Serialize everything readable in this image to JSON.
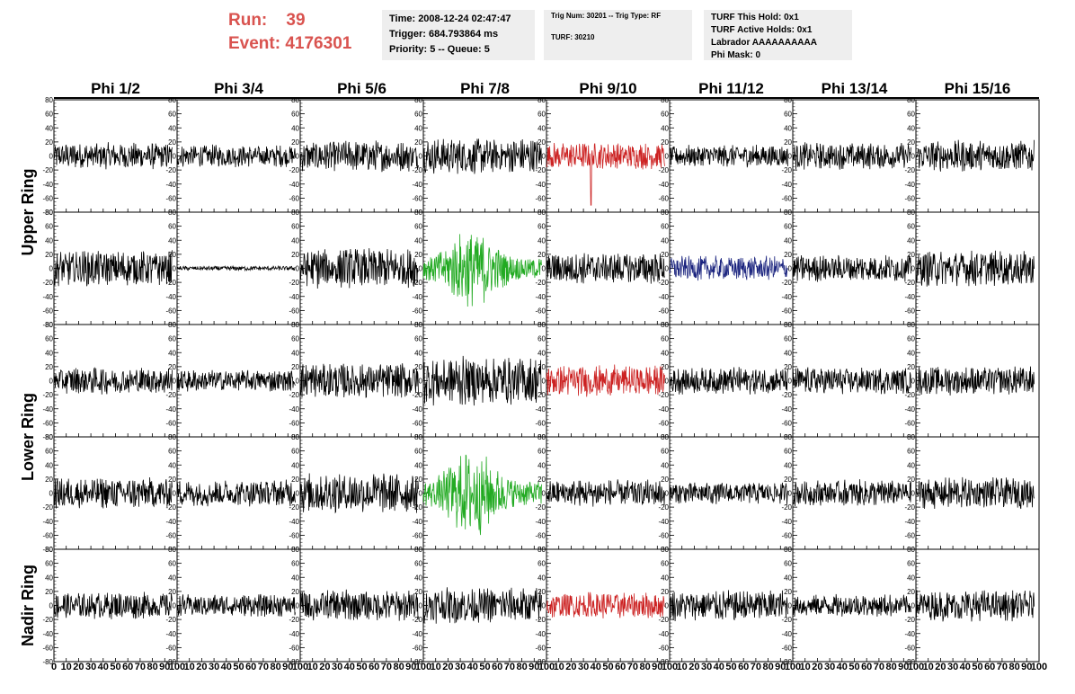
{
  "header": {
    "run_label": "Run:",
    "run_value": "39",
    "event_label": "Event:",
    "event_value": "4176301",
    "time": "Time: 2008-12-24 02:47:47",
    "trigger": "Trigger: 684.793864 ms",
    "priority": "Priority: 5 -- Queue: 5",
    "trig_num": "Trig Num: 30201 -- Trig Type: RF",
    "turf": "TURF: 30210",
    "turf_this_hold": "TURF This Hold: 0x1",
    "turf_active_holds": "TURF Active Holds: 0x1",
    "labrador": "Labrador AAAAAAAAAA",
    "phi_mask": "Phi Mask: 0"
  },
  "chart_data": {
    "type": "line",
    "columns": [
      "Phi 1/2",
      "Phi 3/4",
      "Phi 5/6",
      "Phi 7/8",
      "Phi 9/10",
      "Phi 11/12",
      "Phi 13/14",
      "Phi 15/16"
    ],
    "row_groups": [
      {
        "label": "Upper Ring",
        "rows": [
          0,
          1
        ]
      },
      {
        "label": "Lower Ring",
        "rows": [
          2,
          3
        ]
      },
      {
        "label": "Nadir Ring",
        "rows": [
          4
        ]
      }
    ],
    "ylim": [
      -80,
      80
    ],
    "y_ticks": [
      -80,
      -60,
      -40,
      -20,
      0,
      20,
      40,
      60,
      80
    ],
    "xlim": [
      0,
      100
    ],
    "x_ticks": [
      0,
      10,
      20,
      30,
      40,
      50,
      60,
      70,
      80,
      90,
      100
    ],
    "trace_xmax": 96,
    "colors": {
      "default": "#000000",
      "red": "#cc2222",
      "green": "#22aa22",
      "blue": "#1a237e"
    },
    "panels": [
      [
        {
          "color": "default",
          "amp": 12
        },
        {
          "color": "default",
          "amp": 10
        },
        {
          "color": "default",
          "amp": 14
        },
        {
          "color": "default",
          "amp": 16
        },
        {
          "color": "red",
          "amp": 12,
          "spike": {
            "x": 36,
            "y": -70
          }
        },
        {
          "color": "default",
          "amp": 10
        },
        {
          "color": "default",
          "amp": 12
        },
        {
          "color": "default",
          "amp": 14
        }
      ],
      [
        {
          "color": "default",
          "amp": 16
        },
        {
          "color": "default",
          "amp": 2
        },
        {
          "color": "default",
          "amp": 18
        },
        {
          "color": "green",
          "amp": 22,
          "envelope": true
        },
        {
          "color": "default",
          "amp": 14
        },
        {
          "color": "blue",
          "amp": 11
        },
        {
          "color": "default",
          "amp": 12
        },
        {
          "color": "default",
          "amp": 16
        }
      ],
      [
        {
          "color": "default",
          "amp": 12
        },
        {
          "color": "default",
          "amp": 10
        },
        {
          "color": "default",
          "amp": 16
        },
        {
          "color": "default",
          "amp": 22
        },
        {
          "color": "red",
          "amp": 14
        },
        {
          "color": "default",
          "amp": 12
        },
        {
          "color": "default",
          "amp": 12
        },
        {
          "color": "default",
          "amp": 13
        }
      ],
      [
        {
          "color": "default",
          "amp": 14
        },
        {
          "color": "default",
          "amp": 12
        },
        {
          "color": "default",
          "amp": 18
        },
        {
          "color": "green",
          "amp": 24,
          "envelope": true
        },
        {
          "color": "default",
          "amp": 12
        },
        {
          "color": "default",
          "amp": 10
        },
        {
          "color": "default",
          "amp": 12
        },
        {
          "color": "default",
          "amp": 14
        }
      ],
      [
        {
          "color": "default",
          "amp": 12
        },
        {
          "color": "default",
          "amp": 10
        },
        {
          "color": "default",
          "amp": 14
        },
        {
          "color": "default",
          "amp": 16
        },
        {
          "color": "red",
          "amp": 12
        },
        {
          "color": "default",
          "amp": 14
        },
        {
          "color": "default",
          "amp": 10
        },
        {
          "color": "default",
          "amp": 14
        }
      ]
    ]
  }
}
